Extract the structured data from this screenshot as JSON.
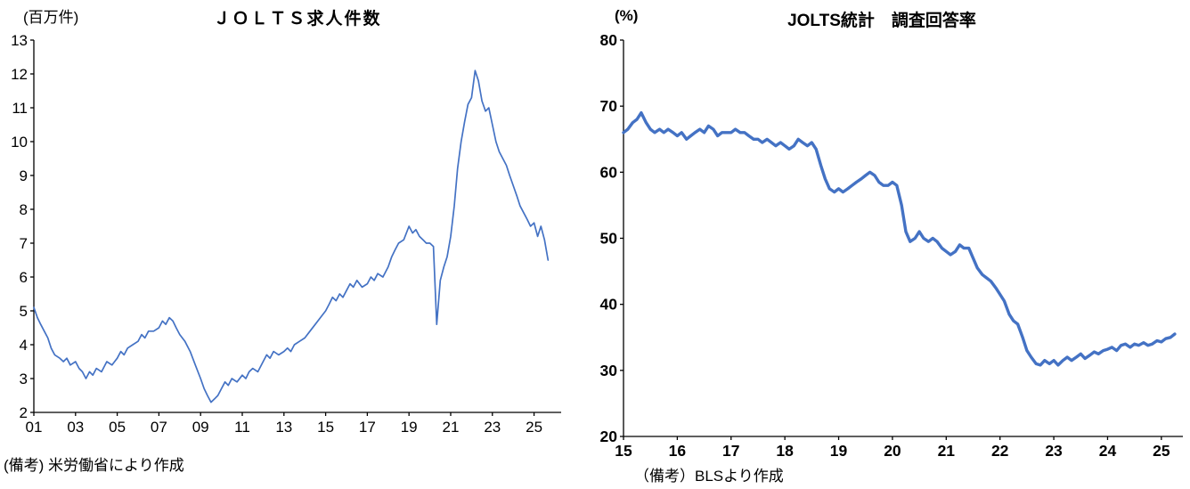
{
  "page": {
    "background": "#ffffff"
  },
  "chart_data": [
    {
      "type": "line",
      "title": "ＪＯＬＴＳ求人件数",
      "unit_label": "(百万件)",
      "note": "(備考) 米労働省により作成",
      "legend": "none",
      "grid": "off",
      "line_color": "#4472C4",
      "line_width": 1.7,
      "xlabel": "",
      "ylabel": "百万件",
      "xlim": [
        2001,
        2026.3
      ],
      "ylim": [
        2,
        13
      ],
      "y_ticks": [
        2,
        3,
        4,
        5,
        6,
        7,
        8,
        9,
        10,
        11,
        12,
        13
      ],
      "x_tick_values": [
        2001,
        2003,
        2005,
        2007,
        2009,
        2011,
        2013,
        2015,
        2017,
        2019,
        2021,
        2023,
        2025
      ],
      "x_tick_labels": [
        "01",
        "03",
        "05",
        "07",
        "09",
        "11",
        "13",
        "15",
        "17",
        "19",
        "21",
        "23",
        "25"
      ],
      "x": [
        2001,
        2001.17,
        2001.33,
        2001.5,
        2001.67,
        2001.83,
        2002,
        2002.25,
        2002.42,
        2002.58,
        2002.75,
        2003,
        2003.17,
        2003.33,
        2003.5,
        2003.67,
        2003.83,
        2004,
        2004.25,
        2004.5,
        2004.75,
        2005,
        2005.17,
        2005.33,
        2005.5,
        2005.75,
        2006,
        2006.17,
        2006.33,
        2006.5,
        2006.75,
        2007,
        2007.17,
        2007.33,
        2007.5,
        2007.67,
        2007.83,
        2008,
        2008.25,
        2008.5,
        2008.75,
        2009,
        2009.17,
        2009.33,
        2009.5,
        2009.67,
        2009.83,
        2010,
        2010.17,
        2010.33,
        2010.5,
        2010.75,
        2011,
        2011.17,
        2011.33,
        2011.5,
        2011.75,
        2012,
        2012.17,
        2012.33,
        2012.5,
        2012.75,
        2013,
        2013.17,
        2013.33,
        2013.5,
        2013.75,
        2014,
        2014.25,
        2014.5,
        2014.75,
        2015,
        2015.17,
        2015.33,
        2015.5,
        2015.67,
        2015.83,
        2016,
        2016.17,
        2016.33,
        2016.5,
        2016.75,
        2017,
        2017.17,
        2017.33,
        2017.5,
        2017.75,
        2018,
        2018.17,
        2018.33,
        2018.5,
        2018.75,
        2019,
        2019.17,
        2019.33,
        2019.5,
        2019.67,
        2019.83,
        2020,
        2020.17,
        2020.33,
        2020.5,
        2020.67,
        2020.83,
        2021,
        2021.17,
        2021.33,
        2021.5,
        2021.67,
        2021.83,
        2022,
        2022.17,
        2022.33,
        2022.5,
        2022.67,
        2022.83,
        2023,
        2023.17,
        2023.33,
        2023.5,
        2023.67,
        2023.83,
        2024,
        2024.17,
        2024.33,
        2024.5,
        2024.67,
        2024.83,
        2025,
        2025.17,
        2025.33,
        2025.5,
        2025.67
      ],
      "y": [
        5.1,
        4.8,
        4.6,
        4.4,
        4.2,
        3.9,
        3.7,
        3.6,
        3.5,
        3.6,
        3.4,
        3.5,
        3.3,
        3.2,
        3.0,
        3.2,
        3.1,
        3.3,
        3.2,
        3.5,
        3.4,
        3.6,
        3.8,
        3.7,
        3.9,
        4.0,
        4.1,
        4.3,
        4.2,
        4.4,
        4.4,
        4.5,
        4.7,
        4.6,
        4.8,
        4.7,
        4.5,
        4.3,
        4.1,
        3.8,
        3.4,
        3.0,
        2.7,
        2.5,
        2.3,
        2.4,
        2.5,
        2.7,
        2.9,
        2.8,
        3.0,
        2.9,
        3.1,
        3.0,
        3.2,
        3.3,
        3.2,
        3.5,
        3.7,
        3.6,
        3.8,
        3.7,
        3.8,
        3.9,
        3.8,
        4.0,
        4.1,
        4.2,
        4.4,
        4.6,
        4.8,
        5.0,
        5.2,
        5.4,
        5.3,
        5.5,
        5.4,
        5.6,
        5.8,
        5.7,
        5.9,
        5.7,
        5.8,
        6.0,
        5.9,
        6.1,
        6.0,
        6.3,
        6.6,
        6.8,
        7.0,
        7.1,
        7.5,
        7.3,
        7.4,
        7.2,
        7.1,
        7.0,
        7.0,
        6.9,
        4.6,
        5.9,
        6.3,
        6.6,
        7.2,
        8.1,
        9.2,
        10.0,
        10.6,
        11.1,
        11.3,
        12.1,
        11.8,
        11.2,
        10.9,
        11.0,
        10.5,
        10.0,
        9.7,
        9.5,
        9.3,
        9.0,
        8.7,
        8.4,
        8.1,
        7.9,
        7.7,
        7.5,
        7.6,
        7.2,
        7.5,
        7.1,
        6.5
      ]
    },
    {
      "type": "line",
      "title": "JOLTS統計　調査回答率",
      "unit_label": "(%)",
      "note": "（備考）BLSより作成",
      "legend": "none",
      "grid": "off",
      "line_color": "#4472C4",
      "line_width": 3.4,
      "xlabel": "",
      "ylabel": "%",
      "xlim": [
        2015,
        2025.4
      ],
      "ylim": [
        20,
        80
      ],
      "y_ticks": [
        20,
        30,
        40,
        50,
        60,
        70,
        80
      ],
      "x_tick_values": [
        2015,
        2016,
        2017,
        2018,
        2019,
        2020,
        2021,
        2022,
        2023,
        2024,
        2025
      ],
      "x_tick_labels": [
        "15",
        "16",
        "17",
        "18",
        "19",
        "20",
        "21",
        "22",
        "23",
        "24",
        "25"
      ],
      "x": [
        2015,
        2015.08,
        2015.17,
        2015.25,
        2015.33,
        2015.42,
        2015.5,
        2015.58,
        2015.67,
        2015.75,
        2015.83,
        2015.92,
        2016,
        2016.08,
        2016.17,
        2016.25,
        2016.33,
        2016.42,
        2016.5,
        2016.58,
        2016.67,
        2016.75,
        2016.83,
        2016.92,
        2017,
        2017.08,
        2017.17,
        2017.25,
        2017.33,
        2017.42,
        2017.5,
        2017.58,
        2017.67,
        2017.75,
        2017.83,
        2017.92,
        2018,
        2018.08,
        2018.17,
        2018.25,
        2018.33,
        2018.42,
        2018.5,
        2018.58,
        2018.67,
        2018.75,
        2018.83,
        2018.92,
        2019,
        2019.08,
        2019.17,
        2019.25,
        2019.33,
        2019.42,
        2019.5,
        2019.58,
        2019.67,
        2019.75,
        2019.83,
        2019.92,
        2020,
        2020.08,
        2020.17,
        2020.25,
        2020.33,
        2020.42,
        2020.5,
        2020.58,
        2020.67,
        2020.75,
        2020.83,
        2020.92,
        2021,
        2021.08,
        2021.17,
        2021.25,
        2021.33,
        2021.42,
        2021.5,
        2021.58,
        2021.67,
        2021.75,
        2021.83,
        2021.92,
        2022,
        2022.08,
        2022.17,
        2022.25,
        2022.33,
        2022.42,
        2022.5,
        2022.58,
        2022.67,
        2022.75,
        2022.83,
        2022.92,
        2023,
        2023.08,
        2023.17,
        2023.25,
        2023.33,
        2023.42,
        2023.5,
        2023.58,
        2023.67,
        2023.75,
        2023.83,
        2023.92,
        2024,
        2024.08,
        2024.17,
        2024.25,
        2024.33,
        2024.42,
        2024.5,
        2024.58,
        2024.67,
        2024.75,
        2024.83,
        2024.92,
        2025,
        2025.08,
        2025.17,
        2025.25
      ],
      "y": [
        66,
        66.5,
        67.5,
        68,
        69,
        67.5,
        66.5,
        66,
        66.5,
        66,
        66.5,
        66,
        65.5,
        66,
        65,
        65.5,
        66,
        66.5,
        66,
        67,
        66.5,
        65.5,
        66,
        66,
        66,
        66.5,
        66,
        66,
        65.5,
        65,
        65,
        64.5,
        65,
        64.5,
        64,
        64.5,
        64,
        63.5,
        64,
        65,
        64.5,
        64,
        64.5,
        63.5,
        61,
        59,
        57.5,
        57,
        57.5,
        57,
        57.5,
        58,
        58.5,
        59,
        59.5,
        60,
        59.5,
        58.5,
        58,
        58,
        58.5,
        58,
        55,
        51,
        49.5,
        50,
        51,
        50,
        49.5,
        50,
        49.5,
        48.5,
        48,
        47.5,
        48,
        49,
        48.5,
        48.5,
        47,
        45.5,
        44.5,
        44,
        43.5,
        42.5,
        41.5,
        40.5,
        38.5,
        37.5,
        37,
        35,
        33,
        32,
        31,
        30.8,
        31.5,
        31,
        31.5,
        30.8,
        31.5,
        32,
        31.5,
        32,
        32.5,
        31.8,
        32.3,
        32.8,
        32.5,
        33,
        33.2,
        33.5,
        33,
        33.8,
        34,
        33.5,
        34,
        33.8,
        34.2,
        33.8,
        34,
        34.5,
        34.3,
        34.8,
        35,
        35.5
      ]
    }
  ]
}
